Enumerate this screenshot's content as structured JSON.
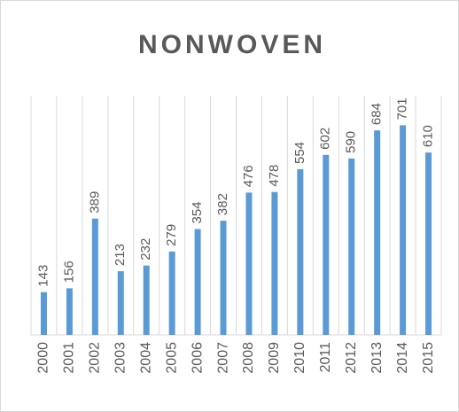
{
  "chart_data": {
    "type": "bar",
    "title": "NONWOVEN",
    "categories": [
      "2000",
      "2001",
      "2002",
      "2003",
      "2004",
      "2005",
      "2006",
      "2007",
      "2008",
      "2009",
      "2010",
      "2011",
      "2012",
      "2013",
      "2014",
      "2015"
    ],
    "values": [
      143,
      156,
      389,
      213,
      232,
      279,
      354,
      382,
      476,
      478,
      554,
      602,
      590,
      684,
      701,
      610
    ],
    "color": "#5b9bd5",
    "ylim": [
      0,
      800
    ]
  }
}
